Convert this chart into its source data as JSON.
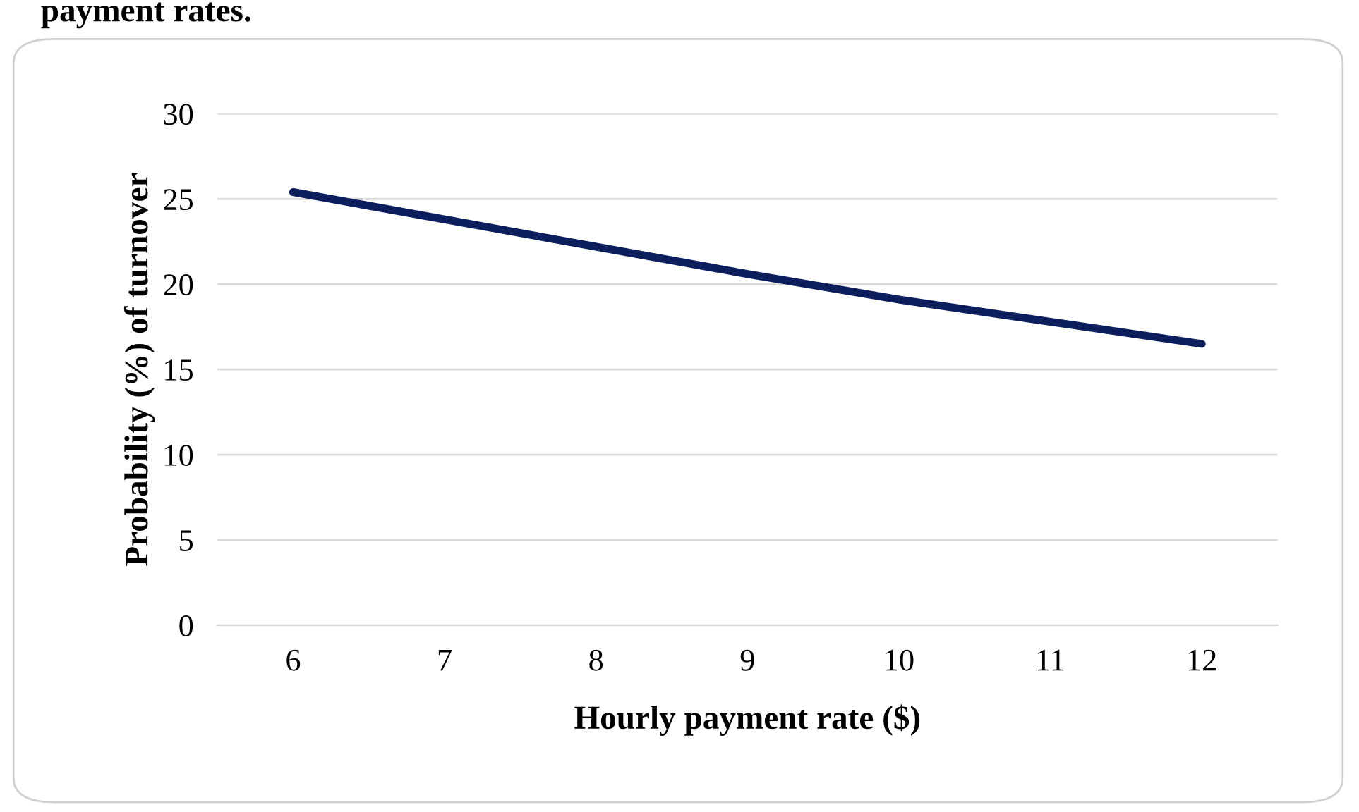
{
  "chart_data": {
    "type": "line",
    "title": "payment rates.",
    "xlabel": "Hourly payment rate ($)",
    "ylabel": "Probability (%) of turnover",
    "categories": [
      "6",
      "7",
      "8",
      "9",
      "10",
      "11",
      "12"
    ],
    "series": [
      {
        "color": "#0c1f5c",
        "values": [
          25.4,
          23.8,
          22.2,
          20.6,
          19.1,
          17.8,
          16.5
        ]
      }
    ],
    "ylim": [
      0,
      30
    ],
    "yticks": [
      0,
      5,
      10,
      15,
      20,
      25,
      30
    ],
    "grid": "y",
    "marker": "none",
    "line_style": "solid"
  }
}
